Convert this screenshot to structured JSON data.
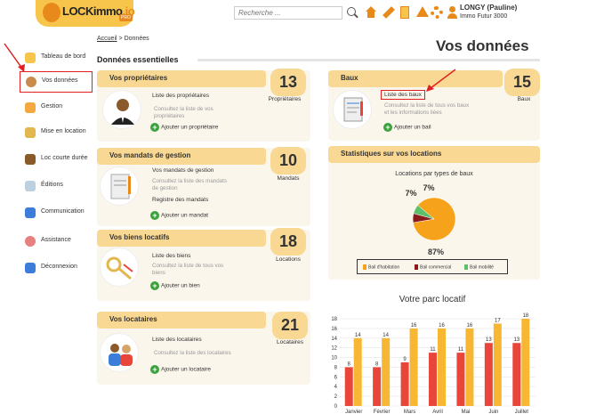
{
  "header": {
    "logo_text": "LOCKimmo",
    "logo_suffix": ".io",
    "logo_tag": "PRO",
    "search_placeholder": "Recherche ...",
    "user_name": "LONGY (Pauline)",
    "user_org": "Immo Futur 3000"
  },
  "sidebar": {
    "items": [
      {
        "label": "Tableau de bord"
      },
      {
        "label": "Vos données"
      },
      {
        "label": "Gestion"
      },
      {
        "label": "Mise en location"
      },
      {
        "label": "Loc courte durée"
      },
      {
        "label": "Éditions"
      },
      {
        "label": "Communication"
      },
      {
        "label": "Assistance"
      },
      {
        "label": "Déconnexion"
      }
    ]
  },
  "breadcrumb": {
    "home": "Accueil",
    "separator": ">",
    "current": "Données"
  },
  "page_title": "Vos données",
  "section_title": "Données essentielles",
  "cards": {
    "proprietaires": {
      "title": "Vos propriétaires",
      "link": "Liste des propriétaires",
      "desc": "Consultez la liste de vos propriétaires",
      "add": "Ajouter un propriétaire",
      "count": "13",
      "count_label": "Propriétaires"
    },
    "mandats": {
      "title": "Vos mandats de gestion",
      "link": "Vos mandats de gestion",
      "desc": "Consultez la liste des mandats de gestion",
      "link2": "Registre des mandats",
      "add": "Ajouter un mandat",
      "count": "10",
      "count_label": "Mandats"
    },
    "biens": {
      "title": "Vos biens locatifs",
      "link": "Liste des biens",
      "desc": "Consultez la liste de tous vos biens",
      "add": "Ajouter un bien",
      "count": "18",
      "count_label": "Locations"
    },
    "locataires": {
      "title": "Vos locataires",
      "link": "Liste des locataires",
      "desc": "Consultez la liste des locataires",
      "add": "Ajouter un locataire",
      "count": "21",
      "count_label": "Locataires"
    },
    "baux": {
      "title": "Baux",
      "link": "Liste des baux",
      "desc": "Consultez la liste de tous vos baux et les informations liées",
      "add": "Ajouter un bail",
      "count": "15",
      "count_label": "Baux"
    }
  },
  "stats": {
    "title": "Statistiques sur vos locations"
  },
  "chart_data": [
    {
      "type": "pie",
      "title": "Locations par types de baux",
      "labels": [
        "Bail d'habitation",
        "Bail commercial",
        "Bail mobilité"
      ],
      "values": [
        87,
        7,
        7
      ],
      "value_labels": [
        "87%",
        "7%",
        "7%"
      ],
      "colors": [
        "#f7a21b",
        "#8b1a1a",
        "#5cc06a"
      ],
      "legend": "bottom"
    },
    {
      "type": "bar",
      "title": "Votre parc locatif",
      "categories": [
        "Janvier",
        "Février",
        "Mars",
        "Avril",
        "Mai",
        "Juin",
        "Juillet"
      ],
      "series": [
        {
          "values": [
            8,
            8,
            9,
            11,
            11,
            13,
            13
          ],
          "color": "#e8463a"
        },
        {
          "values": [
            14,
            14,
            16,
            16,
            16,
            17,
            18
          ],
          "color": "#f7b733"
        }
      ],
      "ylim": [
        0,
        18
      ],
      "yticks": [
        0,
        2,
        4,
        6,
        8,
        10,
        12,
        14,
        16,
        18
      ],
      "grid": true
    }
  ]
}
